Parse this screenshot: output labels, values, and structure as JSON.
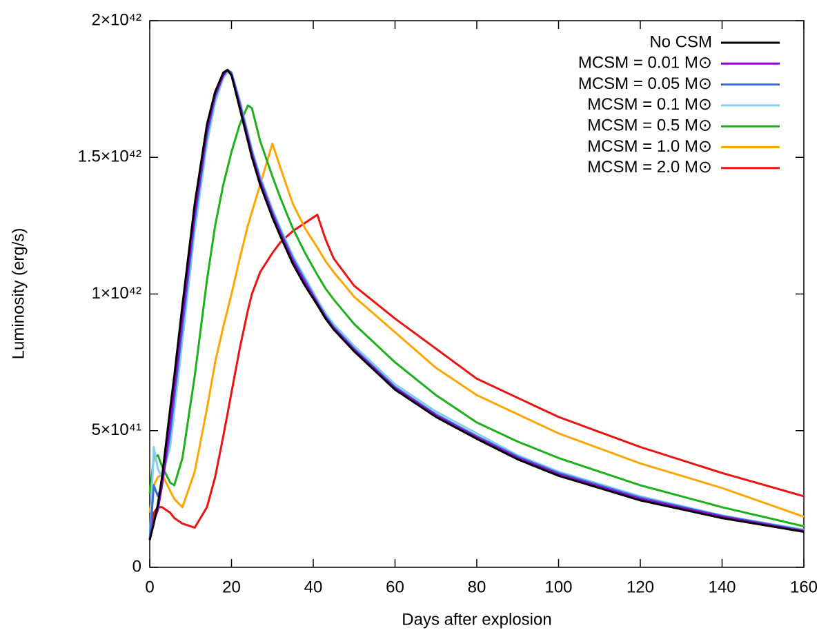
{
  "chart_data": {
    "type": "line",
    "xlabel": "Days after explosion",
    "ylabel": "Luminosity (erg/s)",
    "x": [
      0,
      1,
      2,
      3,
      5,
      6,
      8,
      11,
      14,
      16,
      18,
      19,
      20,
      22,
      24,
      25,
      27,
      30,
      32,
      35,
      38,
      41,
      43,
      45,
      50,
      60,
      70,
      80,
      90,
      100,
      120,
      140,
      160
    ],
    "series": [
      {
        "name": "No CSM",
        "color": "#000000",
        "values": [
          1e+41,
          1.6e+41,
          2.3e+41,
          3.3e+41,
          5.8e+41,
          7e+41,
          9.6e+41,
          1.33e+42,
          1.62e+42,
          1.74e+42,
          1.81e+42,
          1.82e+42,
          1.8e+42,
          1.68e+42,
          1.56e+42,
          1.5e+42,
          1.4e+42,
          1.28e+42,
          1.21e+42,
          1.11e+42,
          1.03e+42,
          9.6e+41,
          9.1e+41,
          8.7e+41,
          7.9e+41,
          6.5e+41,
          5.5e+41,
          4.7e+41,
          3.95e+41,
          3.35e+41,
          2.45e+41,
          1.8e+41,
          1.3e+41
        ]
      },
      {
        "name": "MCSM = 0.01 M⊙",
        "color": "#9400d3",
        "values": [
          1e+41,
          1.7e+41,
          2.1e+41,
          3e+41,
          5.3e+41,
          6.6e+41,
          9.2e+41,
          1.3e+42,
          1.6e+42,
          1.73e+42,
          1.8e+42,
          1.82e+42,
          1.8e+42,
          1.69e+42,
          1.57e+42,
          1.51e+42,
          1.41e+42,
          1.29e+42,
          1.22e+42,
          1.12e+42,
          1.04e+42,
          9.65e+41,
          9.15e+41,
          8.75e+41,
          7.95e+41,
          6.55e+41,
          5.55e+41,
          4.75e+41,
          4e+41,
          3.4e+41,
          2.5e+41,
          1.85e+41,
          1.32e+41
        ]
      },
      {
        "name": "MCSM = 0.05 M⊙",
        "color": "#3a6fd8",
        "values": [
          1e+41,
          3e+41,
          2.6e+41,
          3e+41,
          4.9e+41,
          6.2e+41,
          8.8e+41,
          1.27e+42,
          1.58e+42,
          1.72e+42,
          1.8e+42,
          1.82e+42,
          1.81e+42,
          1.7e+42,
          1.58e+42,
          1.52e+42,
          1.42e+42,
          1.3e+42,
          1.23e+42,
          1.13e+42,
          1.05e+42,
          9.7e+41,
          9.2e+41,
          8.8e+41,
          8e+41,
          6.6e+41,
          5.6e+41,
          4.8e+41,
          4.05e+41,
          3.45e+41,
          2.55e+41,
          1.88e+41,
          1.35e+41
        ]
      },
      {
        "name": "MCSM = 0.1 M⊙",
        "color": "#87ceeb",
        "values": [
          1e+41,
          4.4e+41,
          3.6e+41,
          3.3e+41,
          4.4e+41,
          5.7e+41,
          8.3e+41,
          1.23e+42,
          1.55e+42,
          1.7e+42,
          1.79e+42,
          1.81e+42,
          1.81e+42,
          1.71e+42,
          1.59e+42,
          1.53e+42,
          1.43e+42,
          1.31e+42,
          1.24e+42,
          1.14e+42,
          1.06e+42,
          9.8e+41,
          9.3e+41,
          8.9e+41,
          8.1e+41,
          6.7e+41,
          5.7e+41,
          4.9e+41,
          4.1e+41,
          3.5e+41,
          2.6e+41,
          1.9e+41,
          1.38e+41
        ]
      },
      {
        "name": "MCSM = 0.5 M⊙",
        "color": "#1cb01c",
        "values": [
          2.7e+41,
          4e+41,
          4.1e+41,
          3.7e+41,
          3.1e+41,
          3e+41,
          4e+41,
          7e+41,
          1.05e+42,
          1.25e+42,
          1.4e+42,
          1.46e+42,
          1.52e+42,
          1.62e+42,
          1.69e+42,
          1.68e+42,
          1.56e+42,
          1.43e+42,
          1.35e+42,
          1.24e+42,
          1.15e+42,
          1.07e+42,
          1.02e+42,
          9.8e+41,
          8.9e+41,
          7.5e+41,
          6.3e+41,
          5.3e+41,
          4.6e+41,
          4e+41,
          3e+41,
          2.2e+41,
          1.5e+41
        ]
      },
      {
        "name": "MCSM = 1.0 M⊙",
        "color": "#ffa500",
        "values": [
          2e+41,
          3e+41,
          3.3e+41,
          3.4e+41,
          2.8e+41,
          2.5e+41,
          2.2e+41,
          3.5e+41,
          5.8e+41,
          7.5e+41,
          8.8e+41,
          9.4e+41,
          1e+42,
          1.13e+42,
          1.25e+42,
          1.3e+42,
          1.4e+42,
          1.55e+42,
          1.46e+42,
          1.33e+42,
          1.24e+42,
          1.17e+42,
          1.12e+42,
          1.08e+42,
          9.9e+41,
          8.6e+41,
          7.3e+41,
          6.3e+41,
          5.6e+41,
          4.9e+41,
          3.8e+41,
          2.9e+41,
          1.85e+41
        ]
      },
      {
        "name": "MCSM = 2.0 M⊙",
        "color": "#ee1111",
        "values": [
          1e+41,
          2e+41,
          2.2e+41,
          2.2e+41,
          2e+41,
          1.8e+41,
          1.6e+41,
          1.45e+41,
          2.2e+41,
          3.3e+41,
          4.8e+41,
          5.6e+41,
          6.4e+41,
          8e+41,
          9.4e+41,
          1e+42,
          1.08e+42,
          1.15e+42,
          1.19e+42,
          1.23e+42,
          1.26e+42,
          1.29e+42,
          1.2e+42,
          1.13e+42,
          1.03e+42,
          9.1e+41,
          8e+41,
          6.9e+41,
          6.2e+41,
          5.5e+41,
          4.4e+41,
          3.45e+41,
          2.6e+41
        ]
      }
    ],
    "xlim": [
      0,
      160
    ],
    "xticks": [
      0,
      20,
      40,
      60,
      80,
      100,
      120,
      140,
      160
    ],
    "ylim": [
      0,
      2e+42
    ],
    "yticks": [
      0,
      {
        "value": 5e+41,
        "label": "5×10⁴¹"
      },
      {
        "value": 1e+42,
        "label": "1×10⁴²"
      },
      {
        "value": 1.5e+42,
        "label": "1.5×10⁴²"
      },
      {
        "value": 2e+42,
        "label": "2×10⁴²"
      }
    ],
    "legend": "upper right"
  }
}
